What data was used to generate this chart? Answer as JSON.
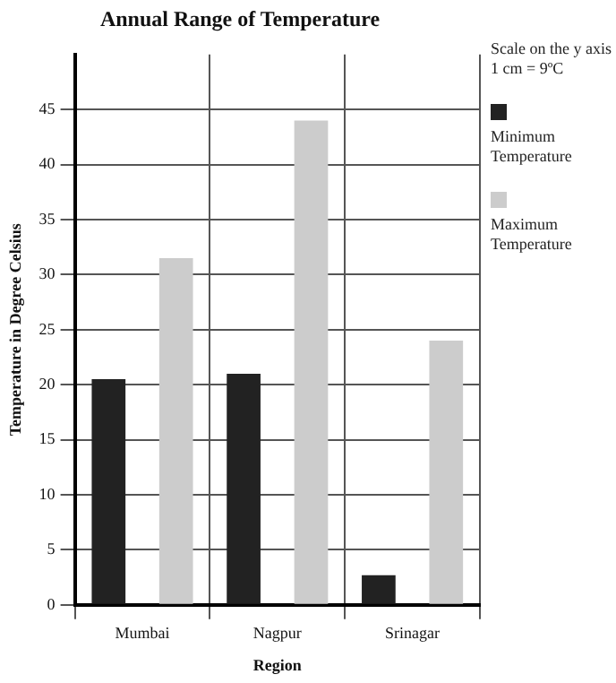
{
  "chart_data": {
    "type": "bar",
    "title": "Annual Range of Temperature",
    "xlabel": "Region",
    "ylabel": "Temperature in Degree Celsius",
    "categories": [
      "Mumbai",
      "Nagpur",
      "Srinagar"
    ],
    "series": [
      {
        "name": "Minimum Temperature",
        "color": "#222222",
        "values": [
          20.5,
          21,
          2.7
        ]
      },
      {
        "name": "Maximum Temperature",
        "color": "#cccccc",
        "values": [
          31.5,
          44,
          24
        ]
      }
    ],
    "ylim": [
      0,
      50
    ],
    "yticks": [
      0,
      5,
      10,
      15,
      20,
      25,
      30,
      35,
      40,
      45
    ],
    "grid": true,
    "legend": "right",
    "annotations": [
      "Scale on the y axis 1 cm = 9ºC"
    ]
  }
}
